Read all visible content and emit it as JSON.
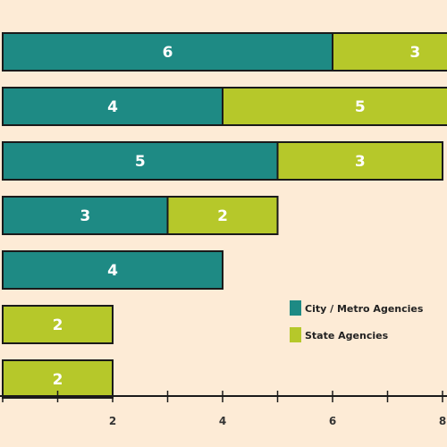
{
  "chart_data": {
    "type": "bar",
    "orientation": "horizontal",
    "stacked": true,
    "series": [
      {
        "name": "City / Metro Agencies",
        "color": "#1e8a84",
        "values": [
          6,
          4,
          5,
          3,
          4,
          0,
          0
        ]
      },
      {
        "name": "State Agencies",
        "color": "#b6c82a",
        "values": [
          3,
          5,
          3,
          2,
          0,
          2,
          2
        ]
      }
    ],
    "xticks": [
      "2",
      "4",
      "6",
      "8"
    ],
    "xlim": [
      -1,
      9
    ],
    "legend_position": "right",
    "grid": false
  }
}
